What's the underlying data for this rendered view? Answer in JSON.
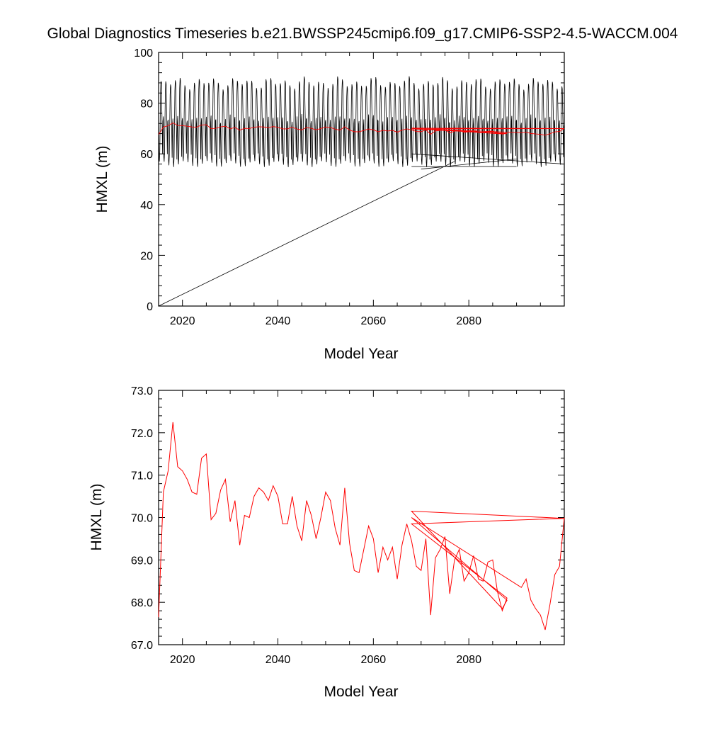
{
  "page": {
    "title": "Global Diagnostics Timeseries b.e21.BWSSP245cmip6.f09_g17.CMIP6-SSP2-4.5-WACCM.004"
  },
  "chart_data": [
    {
      "type": "line",
      "name": "top-panel",
      "xlabel": "Model Year",
      "ylabel": "HMXL (m)",
      "xlim": [
        2015,
        2100
      ],
      "ylim": [
        0,
        100
      ],
      "xticks": [
        2020,
        2040,
        2060,
        2080
      ],
      "xtick_labels": [
        "2020",
        "2040",
        "2060",
        "2080"
      ],
      "yticks": [
        0,
        20,
        40,
        60,
        80,
        100
      ],
      "ytick_labels": [
        "0",
        "20",
        "40",
        "60",
        "80",
        "100"
      ],
      "grid": false,
      "series": [
        {
          "name": "monthly",
          "color": "#000000",
          "seasonal_cycle": {
            "start_year": 2015,
            "end_year": 2100,
            "peak_value": 88,
            "trough_value": 56,
            "peaks_per_year": 1
          },
          "artifacts": [
            {
              "x": [
                2015.0,
                2077.0
              ],
              "y": [
                0,
                57
              ]
            },
            {
              "x": [
                2068.0,
                2090.0
              ],
              "y": [
                55,
                55
              ]
            },
            {
              "x": [
                2068.0,
                2100.0
              ],
              "y": [
                60,
                56
              ]
            },
            {
              "x": [
                2070.0,
                2090.0
              ],
              "y": [
                54,
                58
              ]
            }
          ]
        },
        {
          "name": "annual-mean",
          "color": "#ff0000",
          "x": [
            2015,
            2016,
            2017,
            2018,
            2019,
            2020,
            2021,
            2022,
            2023,
            2024,
            2025,
            2026,
            2027,
            2028,
            2029,
            2030,
            2031,
            2032,
            2033,
            2034,
            2035,
            2036,
            2037,
            2038,
            2039,
            2040,
            2041,
            2042,
            2043,
            2044,
            2045,
            2046,
            2047,
            2048,
            2049,
            2050,
            2051,
            2052,
            2053,
            2054,
            2055,
            2056,
            2057,
            2058,
            2059,
            2060,
            2061,
            2062,
            2063,
            2064,
            2065,
            2066,
            2067,
            2068,
            2069,
            2070,
            2071,
            2072,
            2073,
            2074,
            2075,
            2076,
            2077,
            2078,
            2079,
            2080,
            2081,
            2082,
            2083,
            2084,
            2085,
            2086,
            2087,
            2088,
            2068,
            2100,
            2068,
            2087,
            2088,
            2068,
            2091,
            2092,
            2093,
            2094,
            2095,
            2096,
            2097,
            2098,
            2099,
            2100
          ],
          "y": [
            67.65,
            70.6,
            71.1,
            72.25,
            71.2,
            71.1,
            70.9,
            70.6,
            70.55,
            71.4,
            71.5,
            69.95,
            70.1,
            70.65,
            70.9,
            69.9,
            70.4,
            69.35,
            70.05,
            70.0,
            70.5,
            70.7,
            70.6,
            70.4,
            70.75,
            70.5,
            69.85,
            69.85,
            70.5,
            69.8,
            69.45,
            70.4,
            70.05,
            69.5,
            70.0,
            70.6,
            70.4,
            69.75,
            69.35,
            70.7,
            69.4,
            68.75,
            68.7,
            69.25,
            69.8,
            69.5,
            68.7,
            69.3,
            69.0,
            69.3,
            68.55,
            69.35,
            69.85,
            69.45,
            68.85,
            68.75,
            69.5,
            67.7,
            69.05,
            69.25,
            69.55,
            68.2,
            69.0,
            69.25,
            68.5,
            68.7,
            69.1,
            68.55,
            68.5,
            68.95,
            69.0,
            68.25,
            67.8,
            68.1,
            69.85,
            69.98,
            70.15,
            67.85,
            68.05,
            70.0,
            68.35,
            68.55,
            68.05,
            67.85,
            67.7,
            67.35,
            67.95,
            68.65,
            68.85,
            70.0
          ]
        }
      ]
    },
    {
      "type": "line",
      "name": "bottom-panel",
      "xlabel": "Model Year",
      "ylabel": "HMXL (m)",
      "xlim": [
        2015,
        2100
      ],
      "ylim": [
        67.0,
        73.0
      ],
      "xticks": [
        2020,
        2040,
        2060,
        2080
      ],
      "xtick_labels": [
        "2020",
        "2040",
        "2060",
        "2080"
      ],
      "yticks": [
        67,
        68,
        69,
        70,
        71,
        72,
        73
      ],
      "ytick_labels": [
        "67.0",
        "68.0",
        "69.0",
        "70.0",
        "71.0",
        "72.0",
        "73.0"
      ],
      "grid": false,
      "series_ref": "annual-mean"
    }
  ]
}
